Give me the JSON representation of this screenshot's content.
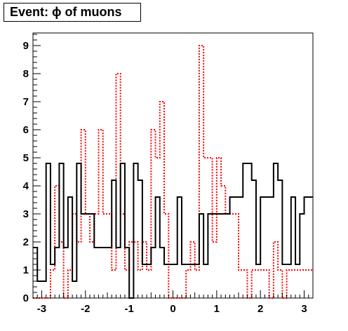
{
  "chart_data": {
    "type": "histogram",
    "title": "Event: ϕ of muons",
    "xlabel": "",
    "ylabel": "",
    "xlim": [
      -3.2,
      3.2
    ],
    "ylim": [
      0,
      9.45
    ],
    "xticks": [
      -3,
      -2,
      -1,
      0,
      1,
      2,
      3
    ],
    "yticks": [
      0,
      1,
      2,
      3,
      4,
      5,
      6,
      7,
      8,
      9
    ],
    "grid": false,
    "bin_edges": [
      -3.2,
      -3.1,
      -3.0,
      -2.9,
      -2.8,
      -2.7,
      -2.6,
      -2.5,
      -2.4,
      -2.3,
      -2.2,
      -2.1,
      -2.0,
      -1.9,
      -1.8,
      -1.7,
      -1.6,
      -1.5,
      -1.4,
      -1.3,
      -1.2,
      -1.1,
      -1.0,
      -0.9,
      -0.8,
      -0.7,
      -0.6,
      -0.5,
      -0.4,
      -0.3,
      -0.2,
      -0.1,
      0.0,
      0.1,
      0.2,
      0.3,
      0.4,
      0.5,
      0.6,
      0.7,
      0.8,
      0.9,
      1.0,
      1.1,
      1.2,
      1.3,
      1.4,
      1.5,
      1.6,
      1.7,
      1.8,
      1.9,
      2.0,
      2.1,
      2.2,
      2.3,
      2.4,
      2.5,
      2.6,
      2.7,
      2.8,
      2.9,
      3.0,
      3.1,
      3.2
    ],
    "series": [
      {
        "style": "solid",
        "color": "#000000",
        "values": [
          1.8,
          0.6,
          0.6,
          4.8,
          1.2,
          1.8,
          4.8,
          1.8,
          3.6,
          0.6,
          4.8,
          3.0,
          3.0,
          3.0,
          1.8,
          1.8,
          1.8,
          1.8,
          4.2,
          1.8,
          4.8,
          1.8,
          0.0,
          4.8,
          4.2,
          1.2,
          1.2,
          1.8,
          3.6,
          1.8,
          1.2,
          1.2,
          1.2,
          3.6,
          1.2,
          1.2,
          1.2,
          1.2,
          3.0,
          1.2,
          3.0,
          3.0,
          3.0,
          3.0,
          3.0,
          3.6,
          3.6,
          3.6,
          4.8,
          4.8,
          4.2,
          1.2,
          3.6,
          3.6,
          3.6,
          4.8,
          4.2,
          1.2,
          1.2,
          3.6,
          1.2,
          3.0,
          3.6,
          3.6
        ]
      },
      {
        "style": "dotted",
        "color": "#ff0000",
        "values": [
          0.0,
          0.0,
          0.0,
          0.0,
          1.0,
          4.0,
          2.0,
          0.0,
          1.0,
          3.0,
          2.0,
          6.0,
          3.0,
          2.0,
          3.0,
          6.0,
          3.0,
          3.0,
          1.0,
          8.0,
          3.0,
          1.0,
          2.0,
          2.0,
          1.0,
          2.0,
          1.0,
          6.0,
          5.0,
          7.0,
          3.0,
          0.0,
          0.0,
          0.0,
          0.0,
          1.0,
          2.0,
          1.0,
          9.0,
          5.0,
          5.0,
          2.0,
          5.0,
          4.0,
          3.0,
          3.0,
          3.0,
          1.0,
          1.0,
          0.0,
          1.0,
          1.0,
          1.0,
          1.0,
          0.0,
          2.0,
          1.0,
          0.0,
          1.0,
          1.0,
          1.0,
          1.0,
          1.0,
          1.0
        ]
      }
    ]
  }
}
